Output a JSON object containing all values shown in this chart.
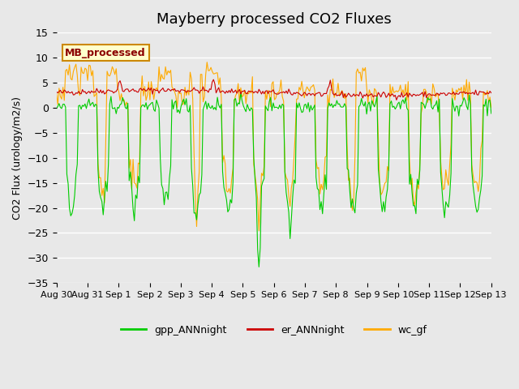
{
  "title": "Mayberry processed CO2 Fluxes",
  "ylabel": "CO2 Flux (urology/m2/s)",
  "ylim": [
    -35,
    15
  ],
  "yticks": [
    -35,
    -30,
    -25,
    -20,
    -15,
    -10,
    -5,
    0,
    5,
    10,
    15
  ],
  "bg_color": "#e8e8e8",
  "line_colors": {
    "gpp": "#00cc00",
    "er": "#cc0000",
    "wc": "#ffaa00"
  },
  "legend_label": "MB_processed",
  "legend_box_color": "#ffffcc",
  "legend_box_edge": "#cc8800",
  "series_labels": [
    "gpp_ANNnight",
    "er_ANNnight",
    "wc_gf"
  ],
  "n_points": 336,
  "seed": 42,
  "xtick_positions": [
    0,
    1,
    2,
    3,
    4,
    5,
    6,
    7,
    8,
    9,
    10,
    11,
    12,
    13,
    14
  ],
  "xtick_labels": [
    "Aug 30",
    "Aug 31",
    "Sep 1",
    "Sep 2",
    "Sep 3",
    "Sep 4",
    "Sep 5",
    "Sep 6",
    "Sep 7",
    "Sep 8",
    "Sep 9",
    "Sep 10",
    "Sep 11",
    "Sep 12",
    "Sep 13"
  ],
  "n_days": 14
}
